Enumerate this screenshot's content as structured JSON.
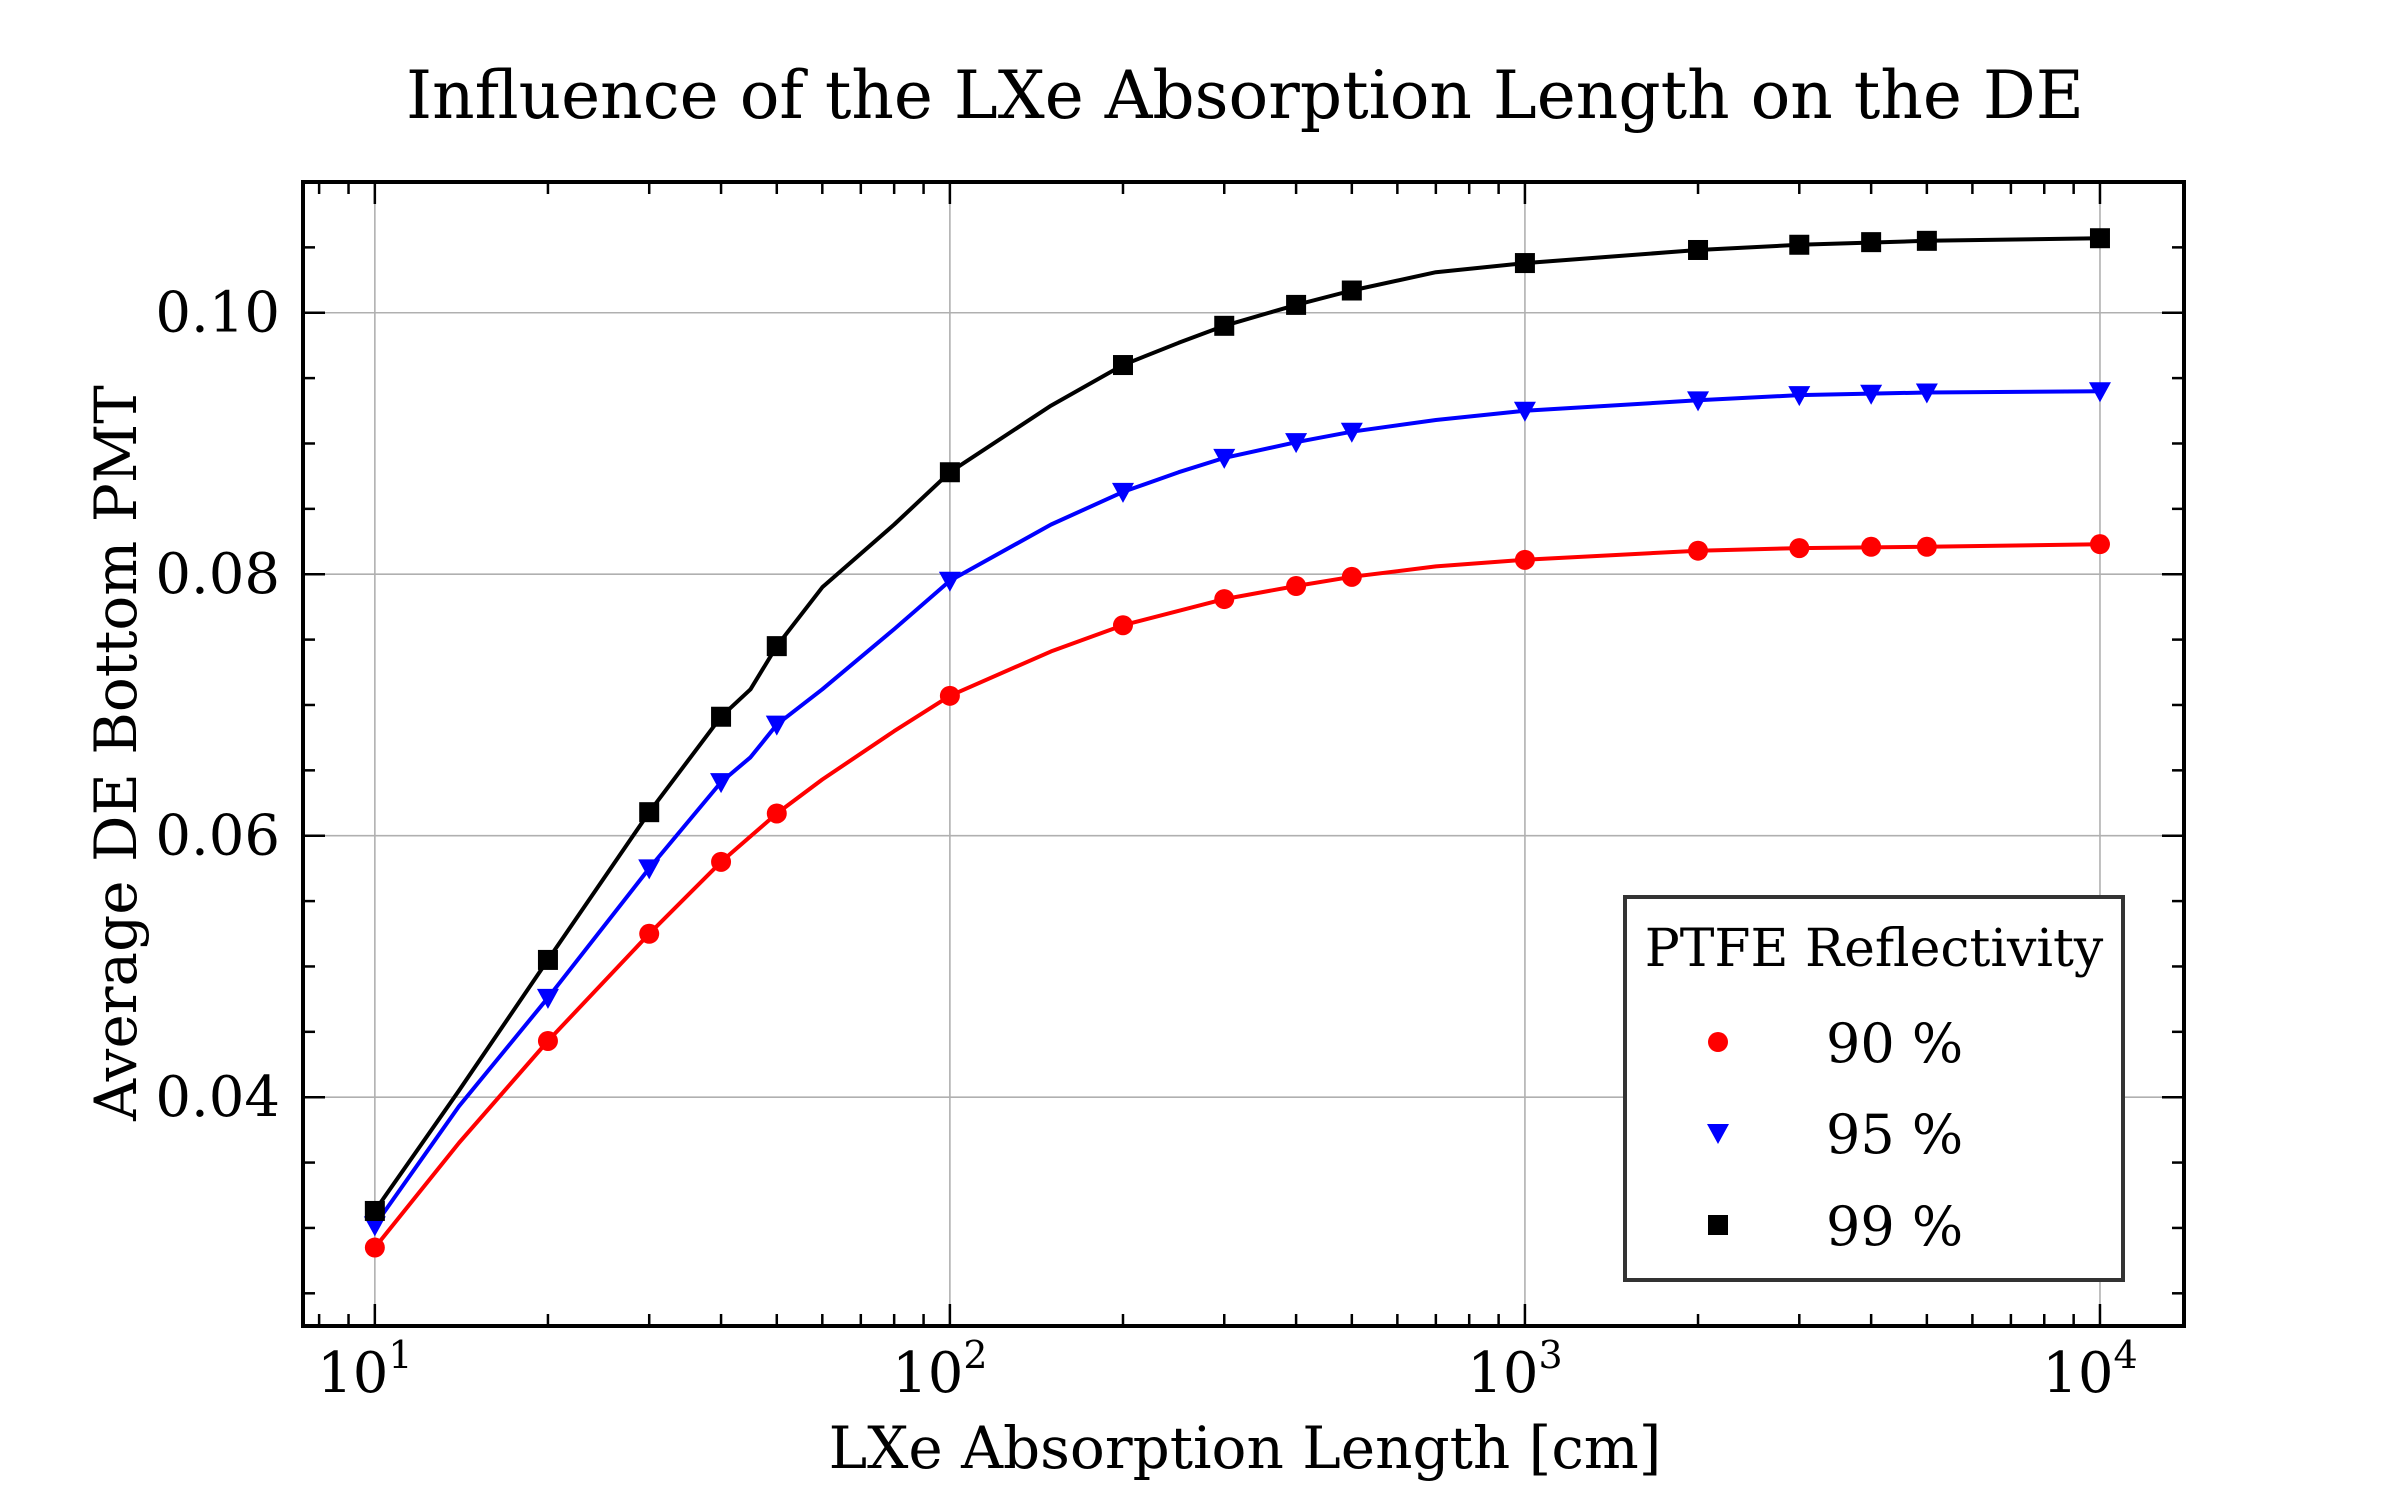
{
  "chart_data": {
    "type": "line",
    "title": "Influence of the LXe Absorption Length on the DE",
    "xlabel": "LXe Absorption Length [cm]",
    "ylabel": "Average DE Bottom PMT",
    "xscale": "log",
    "xlim": [
      7.5,
      14000
    ],
    "ylim": [
      0.0225,
      0.11
    ],
    "grid": true,
    "x_ticks": [
      {
        "value": 10,
        "base": "10",
        "exp": "1"
      },
      {
        "value": 100,
        "base": "10",
        "exp": "2"
      },
      {
        "value": 1000,
        "base": "10",
        "exp": "3"
      },
      {
        "value": 10000,
        "base": "10",
        "exp": "4"
      }
    ],
    "y_ticks": [
      {
        "value": 0.04,
        "label": "0.04"
      },
      {
        "value": 0.06,
        "label": "0.06"
      },
      {
        "value": 0.08,
        "label": "0.08"
      },
      {
        "value": 0.1,
        "label": "0.10"
      }
    ],
    "legend": {
      "title": "PTFE Reflectivity",
      "placement": "lower-right"
    },
    "x": [
      10,
      20,
      30,
      40,
      50,
      100,
      200,
      300,
      400,
      500,
      1000,
      2000,
      3000,
      4000,
      5000,
      10000
    ],
    "series": [
      {
        "name": "90 %",
        "color": "#ff0000",
        "marker": "circle",
        "values": [
          0.0285,
          0.0443,
          0.0525,
          0.058,
          0.0617,
          0.0707,
          0.0761,
          0.0781,
          0.0791,
          0.0798,
          0.0811,
          0.0818,
          0.082,
          0.0821,
          0.0821,
          0.0823
        ],
        "fit": [
          [
            10,
            0.0285
          ],
          [
            14,
            0.0365
          ],
          [
            20,
            0.0443
          ],
          [
            30,
            0.0525
          ],
          [
            40,
            0.058
          ],
          [
            43,
            0.0592
          ],
          [
            50,
            0.0617
          ],
          [
            60,
            0.0643
          ],
          [
            80,
            0.068
          ],
          [
            100,
            0.0707
          ],
          [
            150,
            0.0741
          ],
          [
            200,
            0.0761
          ],
          [
            300,
            0.0781
          ],
          [
            400,
            0.0791
          ],
          [
            500,
            0.0798
          ],
          [
            700,
            0.0806
          ],
          [
            1000,
            0.0811
          ],
          [
            2000,
            0.0818
          ],
          [
            3000,
            0.082
          ],
          [
            5000,
            0.0821
          ],
          [
            10000,
            0.0823
          ]
        ]
      },
      {
        "name": "95 %",
        "color": "#0000ff",
        "marker": "triangle-down",
        "values": [
          0.0302,
          0.0476,
          0.0575,
          0.0641,
          0.0685,
          0.0795,
          0.0863,
          0.0889,
          0.0901,
          0.0909,
          0.0925,
          0.0933,
          0.0937,
          0.0938,
          0.0939,
          0.094
        ],
        "fit": [
          [
            10,
            0.0302
          ],
          [
            14,
            0.0393
          ],
          [
            20,
            0.0476
          ],
          [
            30,
            0.0575
          ],
          [
            40,
            0.0641
          ],
          [
            45,
            0.066
          ],
          [
            50,
            0.0685
          ],
          [
            60,
            0.0712
          ],
          [
            80,
            0.0758
          ],
          [
            100,
            0.0795
          ],
          [
            150,
            0.0838
          ],
          [
            200,
            0.0863
          ],
          [
            250,
            0.0878
          ],
          [
            300,
            0.0889
          ],
          [
            400,
            0.0901
          ],
          [
            500,
            0.0909
          ],
          [
            700,
            0.0918
          ],
          [
            1000,
            0.0925
          ],
          [
            2000,
            0.0933
          ],
          [
            3000,
            0.0937
          ],
          [
            5000,
            0.0939
          ],
          [
            10000,
            0.094
          ]
        ]
      },
      {
        "name": "99 %",
        "color": "#000000",
        "marker": "square",
        "values": [
          0.0313,
          0.0505,
          0.0618,
          0.0691,
          0.0745,
          0.0878,
          0.096,
          0.099,
          0.1006,
          0.1017,
          0.1038,
          0.1048,
          0.1052,
          0.1054,
          0.1055,
          0.1057
        ],
        "fit": [
          [
            10,
            0.0313
          ],
          [
            14,
            0.0405
          ],
          [
            20,
            0.0505
          ],
          [
            30,
            0.0618
          ],
          [
            40,
            0.0691
          ],
          [
            45,
            0.0712
          ],
          [
            50,
            0.0745
          ],
          [
            60,
            0.079
          ],
          [
            80,
            0.0838
          ],
          [
            100,
            0.0878
          ],
          [
            150,
            0.0929
          ],
          [
            200,
            0.096
          ],
          [
            250,
            0.0977
          ],
          [
            300,
            0.099
          ],
          [
            400,
            0.1006
          ],
          [
            500,
            0.1017
          ],
          [
            700,
            0.1031
          ],
          [
            1000,
            0.1038
          ],
          [
            2000,
            0.1048
          ],
          [
            3000,
            0.1052
          ],
          [
            5000,
            0.1055
          ],
          [
            10000,
            0.1057
          ]
        ]
      }
    ]
  }
}
